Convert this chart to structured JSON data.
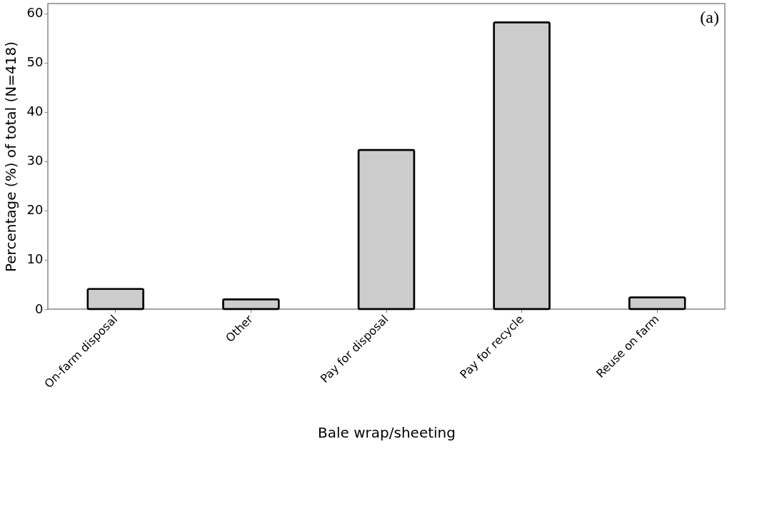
{
  "chart_data": {
    "type": "bar",
    "xlabel": "Bale wrap/sheeting",
    "ylabel": "Percentage (%) of total (N=418)",
    "categories": [
      "On-farm disposal",
      "Other",
      "Pay for disposal",
      "Pay for recycle",
      "Reuse on farm"
    ],
    "values": [
      4.1,
      2.0,
      32.3,
      58.2,
      2.4
    ],
    "color": "#cccccc",
    "ylim": [
      0,
      62
    ],
    "yticks": [
      0,
      10,
      20,
      30,
      40,
      50,
      60
    ],
    "grid": false,
    "annotations": [
      "(a)"
    ]
  }
}
